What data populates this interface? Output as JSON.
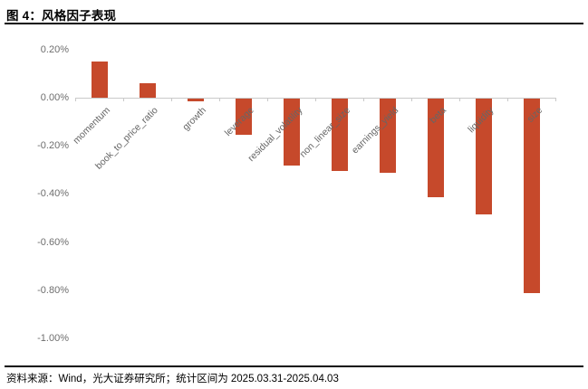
{
  "header": {
    "title": "图 4：风格因子表现"
  },
  "footer": {
    "source": "资料来源：Wind，光大证券研究所；统计区间为 2025.03.31-2025.04.03"
  },
  "chart_data": {
    "type": "bar",
    "title": "图 4：风格因子表现",
    "categories": [
      "momentum",
      "book_to_price_ratio",
      "growth",
      "leverage",
      "residual_volatility",
      "non_linear_size",
      "earnings_yield",
      "beta",
      "liquidity",
      "size"
    ],
    "values": [
      0.15,
      0.06,
      -0.01,
      -0.15,
      -0.28,
      -0.3,
      -0.31,
      -0.41,
      -0.48,
      -0.81
    ],
    "unit": "%",
    "xlabel": "",
    "ylabel": "",
    "ylim": [
      -1.0,
      0.2
    ],
    "yticks": [
      {
        "value": 0.2,
        "label": "0.20%"
      },
      {
        "value": 0.0,
        "label": "0.00%"
      },
      {
        "value": -0.2,
        "label": "-0.20%"
      },
      {
        "value": -0.4,
        "label": "-0.40%"
      },
      {
        "value": -0.6,
        "label": "-0.60%"
      },
      {
        "value": -0.8,
        "label": "-0.80%"
      },
      {
        "value": -1.0,
        "label": "-1.00%"
      }
    ],
    "grid": false,
    "legend": null,
    "bar_color": "#C6492B",
    "axis_color": "#C9C9C9",
    "ytick_label_color": "#6E6E6E",
    "xtick_label_color": "#666666"
  }
}
